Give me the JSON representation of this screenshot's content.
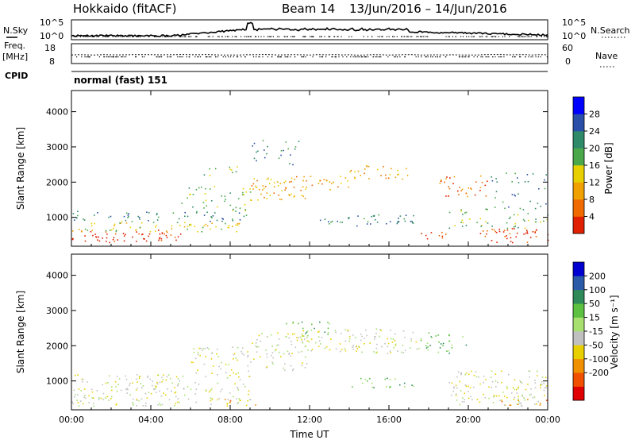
{
  "header": {
    "station": "Hokkaido (fitACF)",
    "beam": "Beam 14",
    "date_range": "13/Jun/2016 – 14/Jun/2016"
  },
  "top_panels": {
    "nsky_label": "N.Sky",
    "nsky_ticks": [
      "10^5",
      "10^0"
    ],
    "nsearch_label": "N.Search",
    "nsearch_ticks": [
      "10^5",
      "10^0"
    ],
    "freq_label": "Freq.",
    "freq_unit": "[MHz]",
    "freq_ticks": [
      "18",
      "8"
    ],
    "nave_label": "Nave",
    "nave_ticks": [
      "60",
      "0"
    ],
    "cpid_label": "CPID",
    "cpid_value": "normal (fast) 151"
  },
  "power_colorbar": {
    "label": "Power [dB]",
    "ticks": [
      "28",
      "24",
      "20",
      "16",
      "12",
      "8",
      "4"
    ],
    "colors": [
      "#0000ff",
      "#2a4fa8",
      "#2f8a6a",
      "#4aa84a",
      "#e8d000",
      "#f0a000",
      "#f06a00",
      "#e02000"
    ]
  },
  "velocity_colorbar": {
    "label": "Velocity [m s⁻¹]",
    "ticks": [
      "200",
      "100",
      "50",
      "15",
      "-15",
      "-50",
      "-100",
      "-200"
    ],
    "colors": [
      "#0000d0",
      "#2a5aa8",
      "#2f8a5a",
      "#5cc040",
      "#a8e070",
      "#c0c0c0",
      "#e8d000",
      "#f09000",
      "#f05000",
      "#e00000"
    ]
  },
  "chart_data": [
    {
      "type": "scatter",
      "title": "Power",
      "xlabel": "Time UT",
      "ylabel": "Slant Range [km]",
      "x_ticks": [
        "00:00",
        "04:00",
        "08:00",
        "12:00",
        "16:00",
        "20:00",
        "00:00"
      ],
      "y_ticks": [
        "1000",
        "2000",
        "3000",
        "4000"
      ],
      "xlim_hours": [
        0,
        24
      ],
      "ylim_km": [
        180,
        4600
      ],
      "regions": [
        {
          "t0": 0.0,
          "t1": 5.5,
          "r0": 300,
          "r1": 650,
          "level": 7,
          "density": 0.9
        },
        {
          "t0": 0.0,
          "t1": 8.5,
          "r0": 600,
          "r1": 900,
          "level": 4,
          "density": 0.8
        },
        {
          "t0": 0.0,
          "t1": 9.0,
          "r0": 900,
          "r1": 1200,
          "level": 2,
          "density": 0.6
        },
        {
          "t0": 5.5,
          "t1": 9.0,
          "r0": 1200,
          "r1": 1900,
          "level": 3,
          "density": 0.5
        },
        {
          "t0": 6.5,
          "t1": 8.5,
          "r0": 2200,
          "r1": 2500,
          "level": 3,
          "density": 0.5
        },
        {
          "t0": 9.0,
          "t1": 12.0,
          "r0": 1500,
          "r1": 2200,
          "level": 5,
          "density": 0.8
        },
        {
          "t0": 9.0,
          "t1": 11.5,
          "r0": 2500,
          "r1": 3200,
          "level": 2,
          "density": 0.4
        },
        {
          "t0": 11.5,
          "t1": 14.0,
          "r0": 1800,
          "r1": 2200,
          "level": 5,
          "density": 0.7
        },
        {
          "t0": 12.5,
          "t1": 17.5,
          "r0": 750,
          "r1": 1100,
          "level": 2,
          "density": 0.7
        },
        {
          "t0": 14.0,
          "t1": 17.0,
          "r0": 2100,
          "r1": 2500,
          "level": 5,
          "density": 0.7
        },
        {
          "t0": 17.0,
          "t1": 19.0,
          "r0": 400,
          "r1": 600,
          "level": 7,
          "density": 0.7
        },
        {
          "t0": 18.5,
          "t1": 21.0,
          "r0": 1600,
          "r1": 2200,
          "level": 6,
          "density": 0.7
        },
        {
          "t0": 20.5,
          "t1": 24.0,
          "r0": 300,
          "r1": 700,
          "level": 7,
          "density": 0.9
        },
        {
          "t0": 19.0,
          "t1": 24.0,
          "r0": 700,
          "r1": 1300,
          "level": 3,
          "density": 0.5
        },
        {
          "t0": 21.0,
          "t1": 24.0,
          "r0": 1300,
          "r1": 2300,
          "level": 2,
          "density": 0.3
        }
      ]
    },
    {
      "type": "scatter",
      "title": "Velocity",
      "xlabel": "Time UT",
      "ylabel": "Slant Range [km]",
      "x_ticks": [
        "00:00",
        "04:00",
        "08:00",
        "12:00",
        "16:00",
        "20:00",
        "00:00"
      ],
      "y_ticks": [
        "1000",
        "2000",
        "3000",
        "4000"
      ],
      "xlim_hours": [
        0,
        24
      ],
      "ylim_km": [
        180,
        4600
      ],
      "regions": [
        {
          "t0": 0.0,
          "t1": 6.0,
          "r0": 300,
          "r1": 1200,
          "level": 5,
          "density": 0.85
        },
        {
          "t0": 6.0,
          "t1": 9.0,
          "r0": 300,
          "r1": 2000,
          "level": 5,
          "density": 0.6
        },
        {
          "t0": 7.0,
          "t1": 9.5,
          "r0": 300,
          "r1": 500,
          "level": 7,
          "density": 0.5
        },
        {
          "t0": 9.0,
          "t1": 12.0,
          "r0": 1300,
          "r1": 2400,
          "level": 5,
          "density": 0.7
        },
        {
          "t0": 10.5,
          "t1": 13.0,
          "r0": 2300,
          "r1": 2700,
          "level": 3,
          "density": 0.5
        },
        {
          "t0": 11.5,
          "t1": 17.5,
          "r0": 1800,
          "r1": 2500,
          "level": 5,
          "density": 0.75
        },
        {
          "t0": 14.0,
          "t1": 17.5,
          "r0": 800,
          "r1": 1100,
          "level": 3,
          "density": 0.6
        },
        {
          "t0": 17.5,
          "t1": 20.0,
          "r0": 1800,
          "r1": 2400,
          "level": 3,
          "density": 0.6
        },
        {
          "t0": 19.0,
          "t1": 24.0,
          "r0": 300,
          "r1": 1300,
          "level": 5,
          "density": 0.8
        },
        {
          "t0": 21.0,
          "t1": 24.0,
          "r0": 300,
          "r1": 500,
          "level": 7,
          "density": 0.5
        }
      ]
    }
  ]
}
